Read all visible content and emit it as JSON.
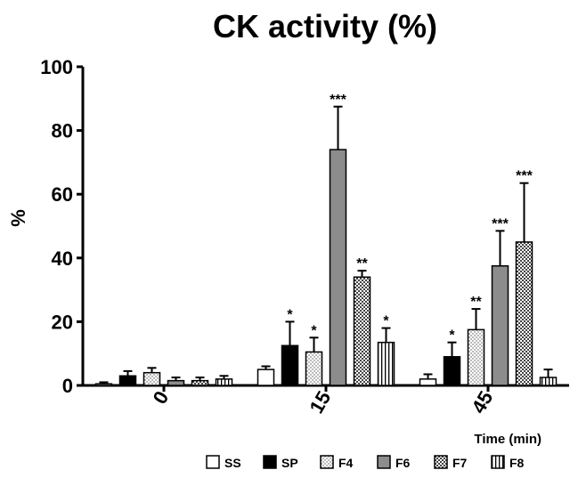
{
  "chart_data": {
    "type": "bar",
    "title": "CK activity (%)",
    "y_label": "%",
    "x_label": "Time (min)",
    "categories": [
      "0",
      "15",
      "45"
    ],
    "ylim": [
      0,
      100
    ],
    "yticks": [
      0,
      20,
      40,
      60,
      80,
      100
    ],
    "series": [
      {
        "name": "SS",
        "color": "#ffffff",
        "pattern": "solid",
        "values": [
          0.5,
          5,
          2
        ],
        "errors": [
          0.5,
          1,
          1.5
        ],
        "annotations": [
          null,
          null,
          null
        ]
      },
      {
        "name": "SP",
        "color": "#000000",
        "pattern": "solid",
        "values": [
          3,
          12.5,
          9
        ],
        "errors": [
          1.5,
          7.5,
          4.5
        ],
        "annotations": [
          null,
          "*",
          "*"
        ]
      },
      {
        "name": "F4",
        "color": "#ffffff",
        "pattern": "dots",
        "values": [
          4,
          10.5,
          17.5
        ],
        "errors": [
          1.5,
          4.5,
          6.5
        ],
        "annotations": [
          null,
          "*",
          "**"
        ]
      },
      {
        "name": "F6",
        "color": "#8c8c8c",
        "pattern": "solid",
        "values": [
          1.5,
          74,
          37.5
        ],
        "errors": [
          1,
          13.5,
          11
        ],
        "annotations": [
          null,
          "***",
          "***"
        ]
      },
      {
        "name": "F7",
        "color": "#ffffff",
        "pattern": "checker",
        "values": [
          1.5,
          34,
          45
        ],
        "errors": [
          1,
          2,
          18.5
        ],
        "annotations": [
          null,
          "**",
          "***"
        ]
      },
      {
        "name": "F8",
        "color": "#ffffff",
        "pattern": "vlines",
        "values": [
          2,
          13.5,
          2.5
        ],
        "errors": [
          1,
          4.5,
          2.5
        ],
        "annotations": [
          null,
          "*",
          null
        ]
      }
    ]
  }
}
